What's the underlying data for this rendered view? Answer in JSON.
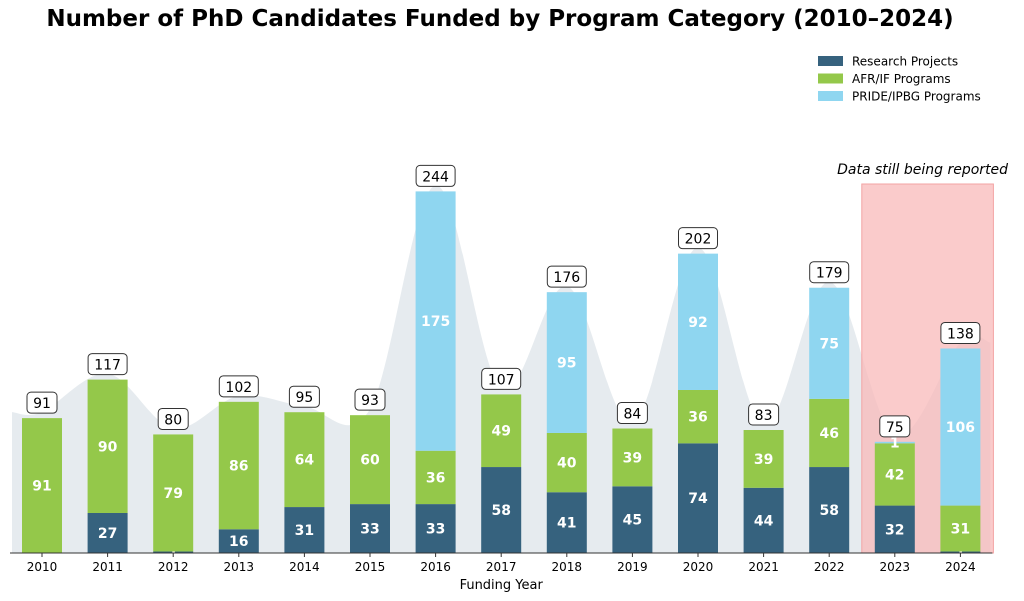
{
  "chart_data": {
    "type": "bar",
    "stacked": true,
    "title": "Number of PhD Candidates Funded by Program Category (2010–2024)",
    "xlabel": "Funding Year",
    "ylabel": "",
    "ylim": [
      0,
      270
    ],
    "grid": false,
    "legend_position": "top-right",
    "categories": [
      "2010",
      "2011",
      "2012",
      "2013",
      "2014",
      "2015",
      "2016",
      "2017",
      "2018",
      "2019",
      "2020",
      "2021",
      "2022",
      "2023",
      "2024"
    ],
    "series": [
      {
        "name": "Research Projects",
        "color": "#36627e",
        "values": [
          0,
          27,
          1,
          16,
          31,
          33,
          33,
          58,
          41,
          45,
          74,
          44,
          58,
          32,
          1
        ]
      },
      {
        "name": "AFR/IF Programs",
        "color": "#94c84a",
        "values": [
          91,
          90,
          79,
          86,
          64,
          60,
          36,
          49,
          40,
          39,
          36,
          39,
          46,
          42,
          31
        ]
      },
      {
        "name": "PRIDE/IPBG Programs",
        "color": "#8fd6f0",
        "values": [
          0,
          0,
          0,
          0,
          0,
          0,
          175,
          0,
          95,
          0,
          92,
          0,
          75,
          1,
          106
        ]
      }
    ],
    "totals": [
      91,
      117,
      80,
      102,
      95,
      93,
      244,
      107,
      176,
      84,
      202,
      83,
      179,
      75,
      138
    ],
    "annotation": {
      "text": "Data still being reported",
      "years": [
        "2023",
        "2024"
      ],
      "color": "#f8b9b9"
    },
    "background_trend_color": "#e6ebef"
  }
}
